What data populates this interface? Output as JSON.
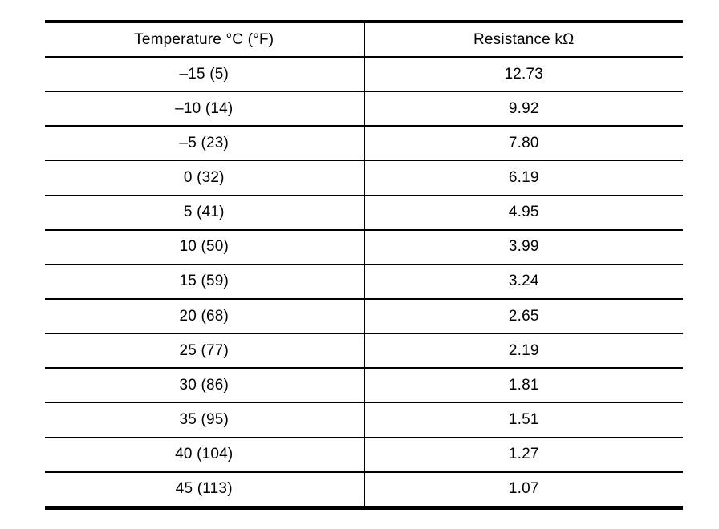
{
  "table": {
    "columns": [
      "Temperature °C (°F)",
      "Resistance kΩ"
    ],
    "rows": [
      {
        "temperature": "–15 (5)",
        "resistance": "12.73"
      },
      {
        "temperature": "–10 (14)",
        "resistance": "9.92"
      },
      {
        "temperature": "–5 (23)",
        "resistance": "7.80"
      },
      {
        "temperature": "0 (32)",
        "resistance": "6.19"
      },
      {
        "temperature": "5 (41)",
        "resistance": "4.95"
      },
      {
        "temperature": "10 (50)",
        "resistance": "3.99"
      },
      {
        "temperature": "15 (59)",
        "resistance": "3.24"
      },
      {
        "temperature": "20 (68)",
        "resistance": "2.65"
      },
      {
        "temperature": "25 (77)",
        "resistance": "2.19"
      },
      {
        "temperature": "30 (86)",
        "resistance": "1.81"
      },
      {
        "temperature": "35 (95)",
        "resistance": "1.51"
      },
      {
        "temperature": "40 (104)",
        "resistance": "1.27"
      },
      {
        "temperature": "45 (113)",
        "resistance": "1.07"
      }
    ],
    "colors": {
      "border": "#000000",
      "background": "#ffffff",
      "text": "#000000"
    }
  }
}
